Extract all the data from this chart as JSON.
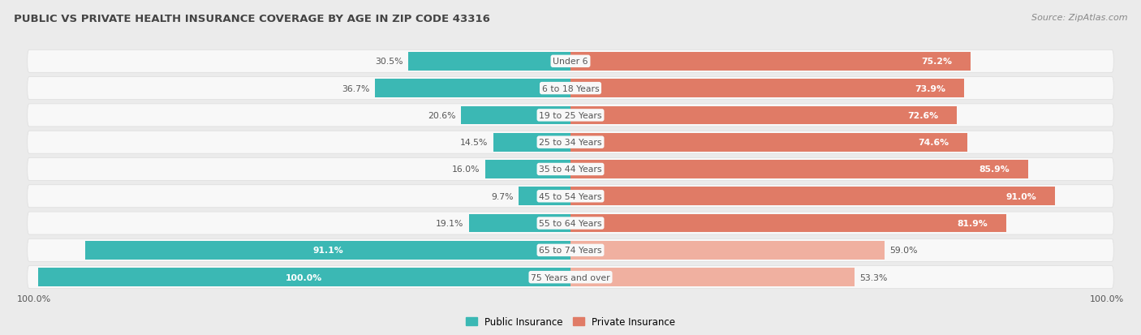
{
  "title": "PUBLIC VS PRIVATE HEALTH INSURANCE COVERAGE BY AGE IN ZIP CODE 43316",
  "source": "Source: ZipAtlas.com",
  "categories": [
    "Under 6",
    "6 to 18 Years",
    "19 to 25 Years",
    "25 to 34 Years",
    "35 to 44 Years",
    "45 to 54 Years",
    "55 to 64 Years",
    "65 to 74 Years",
    "75 Years and over"
  ],
  "public_values": [
    30.5,
    36.7,
    20.6,
    14.5,
    16.0,
    9.7,
    19.1,
    91.1,
    100.0
  ],
  "private_values": [
    75.2,
    73.9,
    72.6,
    74.6,
    85.9,
    91.0,
    81.9,
    59.0,
    53.3
  ],
  "public_color": "#3bb8b4",
  "private_color_dark": "#e07b66",
  "private_color_light": "#f0b0a0",
  "bg_color": "#ebebeb",
  "row_bg_color": "#f5f5f5",
  "row_bg_color_alt": "#eeeeee",
  "title_color": "#444444",
  "source_color": "#888888",
  "label_dark": "#555555",
  "label_white": "#ffffff",
  "legend_public": "Public Insurance",
  "legend_private": "Private Insurance",
  "scale": 100.0
}
